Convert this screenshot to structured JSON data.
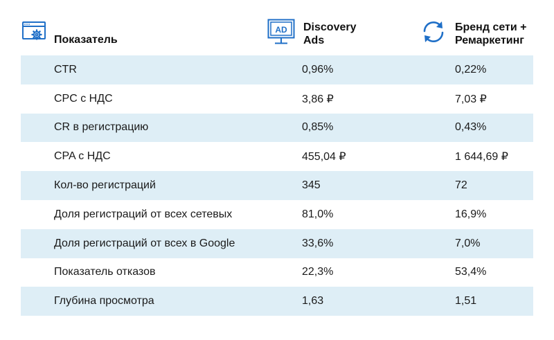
{
  "header": {
    "col1_title": "Показатель",
    "col2_title_line1": "Discovery",
    "col2_title_line2": "Ads",
    "col2_icon_text": "AD",
    "col3_title_line1": "Бренд сети +",
    "col3_title_line2": "Ремаркетинг"
  },
  "icons": {
    "col1": "browser-gear-icon",
    "col2": "ad-billboard-icon",
    "col3": "refresh-arrows-icon"
  },
  "colors": {
    "accent": "#1f6fc7",
    "row_shade": "#deeef6"
  },
  "rows": [
    {
      "metric": "CTR",
      "discovery": "0,96%",
      "brand": "0,22%"
    },
    {
      "metric": "CPC с НДС",
      "discovery": "3,86 ₽",
      "brand": "7,03 ₽"
    },
    {
      "metric": "CR в регистрацию",
      "discovery": "0,85%",
      "brand": "0,43%"
    },
    {
      "metric": "CPA с НДС",
      "discovery": "455,04 ₽",
      "brand": "1 644,69 ₽"
    },
    {
      "metric": "Кол-во регистраций",
      "discovery": "345",
      "brand": "72"
    },
    {
      "metric": "Доля регистраций от всех сетевых",
      "discovery": "81,0%",
      "brand": "16,9%"
    },
    {
      "metric": "Доля регистраций от всех в Google",
      "discovery": "33,6%",
      "brand": "7,0%"
    },
    {
      "metric": "Показатель отказов",
      "discovery": "22,3%",
      "brand": "53,4%"
    },
    {
      "metric": "Глубина просмотра",
      "discovery": "1,63",
      "brand": "1,51"
    }
  ]
}
